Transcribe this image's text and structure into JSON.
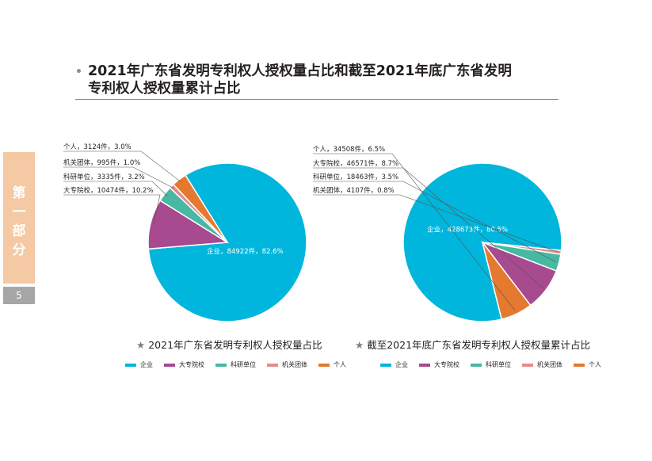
{
  "page": {
    "title_line1": "2021年广东省发明专利权人授权量占比和截至2021年底广东省发明",
    "title_line2": "专利权人授权量累计占比",
    "side_tab": "第\n一\n部\n分",
    "page_number": "5"
  },
  "colors": {
    "企业": "#00b6dd",
    "大专院校": "#a74a8f",
    "科研单位": "#47b8a2",
    "机关团体": "#e58b8f",
    "个人": "#e4792f"
  },
  "chart_data": [
    {
      "type": "pie",
      "title": "2021年广东省发明专利权人授权量占比",
      "legend": [
        "企业",
        "大专院校",
        "科研单位",
        "机关团体",
        "个人"
      ],
      "slices": [
        {
          "name": "企业",
          "value": 84922,
          "percent": 82.6,
          "label": "企业，84922件，82.6%"
        },
        {
          "name": "大专院校",
          "value": 10474,
          "percent": 10.2,
          "label": "大专院校，10474件，10.2%"
        },
        {
          "name": "科研单位",
          "value": 3335,
          "percent": 3.2,
          "label": "科研单位，3335件，3.2%"
        },
        {
          "name": "机关团体",
          "value": 995,
          "percent": 1.0,
          "label": "机关团体，995件，1.0%"
        },
        {
          "name": "个人",
          "value": 3124,
          "percent": 3.0,
          "label": "个人，3124件，3.0%"
        }
      ]
    },
    {
      "type": "pie",
      "title": "截至2021年底广东省发明专利权人授权量累计占比",
      "legend": [
        "企业",
        "大专院校",
        "科研单位",
        "机关团体",
        "个人"
      ],
      "slices": [
        {
          "name": "企业",
          "value": 428673,
          "percent": 80.5,
          "label": "企业，428673件，80.5%"
        },
        {
          "name": "机关团体",
          "value": 4107,
          "percent": 0.8,
          "label": "机关团体，4107件，0.8%"
        },
        {
          "name": "科研单位",
          "value": 18463,
          "percent": 3.5,
          "label": "科研单位，18463件，3.5%"
        },
        {
          "name": "大专院校",
          "value": 46571,
          "percent": 8.7,
          "label": "大专院校，46571件，8.7%"
        },
        {
          "name": "个人",
          "value": 34508,
          "percent": 6.5,
          "label": "个人，34508件，6.5%"
        }
      ]
    }
  ]
}
